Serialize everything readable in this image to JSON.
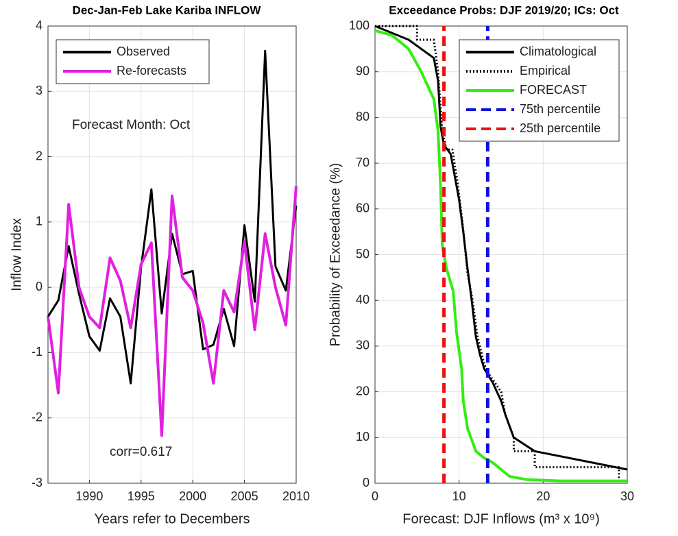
{
  "chart_data": [
    {
      "type": "line",
      "title": "Dec-Jan-Feb Lake Kariba INFLOW",
      "ylabel": "Inflow Index",
      "xlabel": "Years refer to Decembers",
      "annotations": [
        "Forecast Month: Oct",
        "corr=0.617"
      ],
      "x": [
        1986,
        1987,
        1988,
        1989,
        1990,
        1991,
        1992,
        1993,
        1994,
        1995,
        1996,
        1997,
        1998,
        1999,
        2000,
        2001,
        2002,
        2003,
        2004,
        2005,
        2006,
        2007,
        2008,
        2009,
        2010
      ],
      "series": [
        {
          "name": "Observed",
          "color": "#000000",
          "style": "solid",
          "values": [
            -0.45,
            -0.2,
            0.63,
            -0.1,
            -0.75,
            -0.97,
            -0.17,
            -0.45,
            -1.47,
            0.3,
            1.5,
            -0.4,
            0.82,
            0.2,
            0.25,
            -0.95,
            -0.88,
            -0.33,
            -0.9,
            0.95,
            -0.22,
            3.62,
            0.32,
            -0.05,
            1.25
          ]
        },
        {
          "name": "Re-forecasts",
          "color": "#e020e0",
          "style": "solid",
          "values": [
            -0.45,
            -1.62,
            1.27,
            0.0,
            -0.45,
            -0.62,
            0.45,
            0.1,
            -0.62,
            0.35,
            0.68,
            -2.27,
            1.4,
            0.15,
            -0.05,
            -0.55,
            -1.47,
            -0.05,
            -0.38,
            0.7,
            -0.65,
            0.82,
            0.0,
            -0.58,
            1.55
          ]
        }
      ],
      "xlim": [
        1986,
        2010
      ],
      "xticks": [
        1990,
        1995,
        2000,
        2005,
        2010
      ],
      "ylim": [
        -3,
        4
      ],
      "yticks": [
        -3,
        -2,
        -1,
        0,
        1,
        2,
        3,
        4
      ],
      "grid": true,
      "legend": "upper-left"
    },
    {
      "type": "line",
      "title": "Exceedance Probs: DJF 2019/20; ICs: Oct",
      "ylabel": "Probability of Exceedance (%)",
      "xlabel": "Forecast: DJF Inflows (m³ x 10⁹)",
      "series": [
        {
          "name": "Climatological",
          "color": "#000000",
          "style": "solid",
          "x": [
            0,
            4,
            7,
            7.5,
            7.8,
            8.2,
            9,
            9.5,
            10,
            10.5,
            11,
            11.5,
            12,
            12.5,
            13,
            14,
            15,
            15.5,
            16.5,
            19,
            30
          ],
          "values": [
            100,
            97,
            93,
            88,
            78,
            74,
            72,
            67,
            62,
            55,
            47,
            40,
            32,
            28,
            25,
            22,
            18,
            15,
            10,
            7,
            3
          ]
        },
        {
          "name": "Empirical",
          "color": "#000000",
          "style": "dotted",
          "x": [
            0,
            5,
            5,
            7,
            7.5,
            8,
            8.5,
            9.2,
            9.8,
            10.4,
            11,
            11.6,
            12.2,
            13,
            13.5,
            15,
            15.5,
            16.5,
            16.5,
            19,
            19,
            29,
            29
          ],
          "values": [
            100,
            100,
            97,
            97,
            90,
            77,
            73,
            73,
            66,
            57,
            46,
            40,
            32,
            26,
            24,
            20,
            15,
            10,
            7,
            7,
            3.5,
            3.5,
            1
          ]
        },
        {
          "name": "FORECAST",
          "color": "#33ee11",
          "style": "solid",
          "x": [
            0,
            2,
            4,
            5.5,
            7,
            7.5,
            7.8,
            8,
            8.5,
            9.3,
            9.7,
            10.3,
            10.5,
            11,
            12,
            13,
            14,
            15,
            16,
            18,
            22,
            30
          ],
          "values": [
            99,
            98,
            95,
            90,
            84,
            77,
            65,
            52,
            47,
            42,
            33,
            25,
            18,
            12,
            7,
            5.5,
            4.5,
            3,
            1.5,
            0.8,
            0.5,
            0.5
          ]
        },
        {
          "name": "75th percentile",
          "color": "#1010dd",
          "style": "dashed",
          "x": [
            13.4,
            13.4
          ],
          "values": [
            0,
            100
          ]
        },
        {
          "name": "25th percentile",
          "color": "#ee1111",
          "style": "dashed",
          "x": [
            8.2,
            8.2
          ],
          "values": [
            0,
            100
          ]
        }
      ],
      "xlim": [
        0,
        30
      ],
      "xticks": [
        0,
        10,
        20,
        30
      ],
      "ylim": [
        0,
        100
      ],
      "yticks": [
        0,
        10,
        20,
        30,
        40,
        50,
        60,
        70,
        80,
        90,
        100
      ],
      "grid": true,
      "legend": "upper-right"
    }
  ]
}
